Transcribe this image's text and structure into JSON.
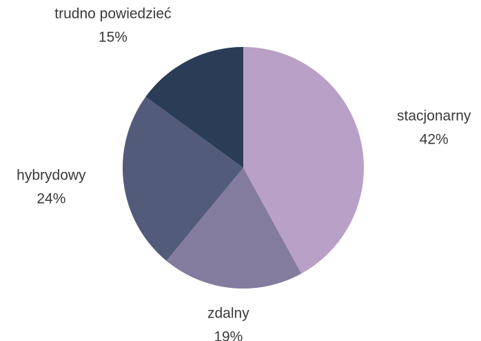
{
  "chart_data": {
    "type": "pie",
    "categories": [
      "stacjonarny",
      "zdalny",
      "hybrydowy",
      "trudno powiedzieć"
    ],
    "values": [
      42,
      19,
      24,
      15
    ],
    "value_labels": [
      "42%",
      "19%",
      "24%",
      "15%"
    ],
    "colors": [
      "#b9a0c6",
      "#847c9f",
      "#525c7a",
      "#2a3c56"
    ]
  }
}
